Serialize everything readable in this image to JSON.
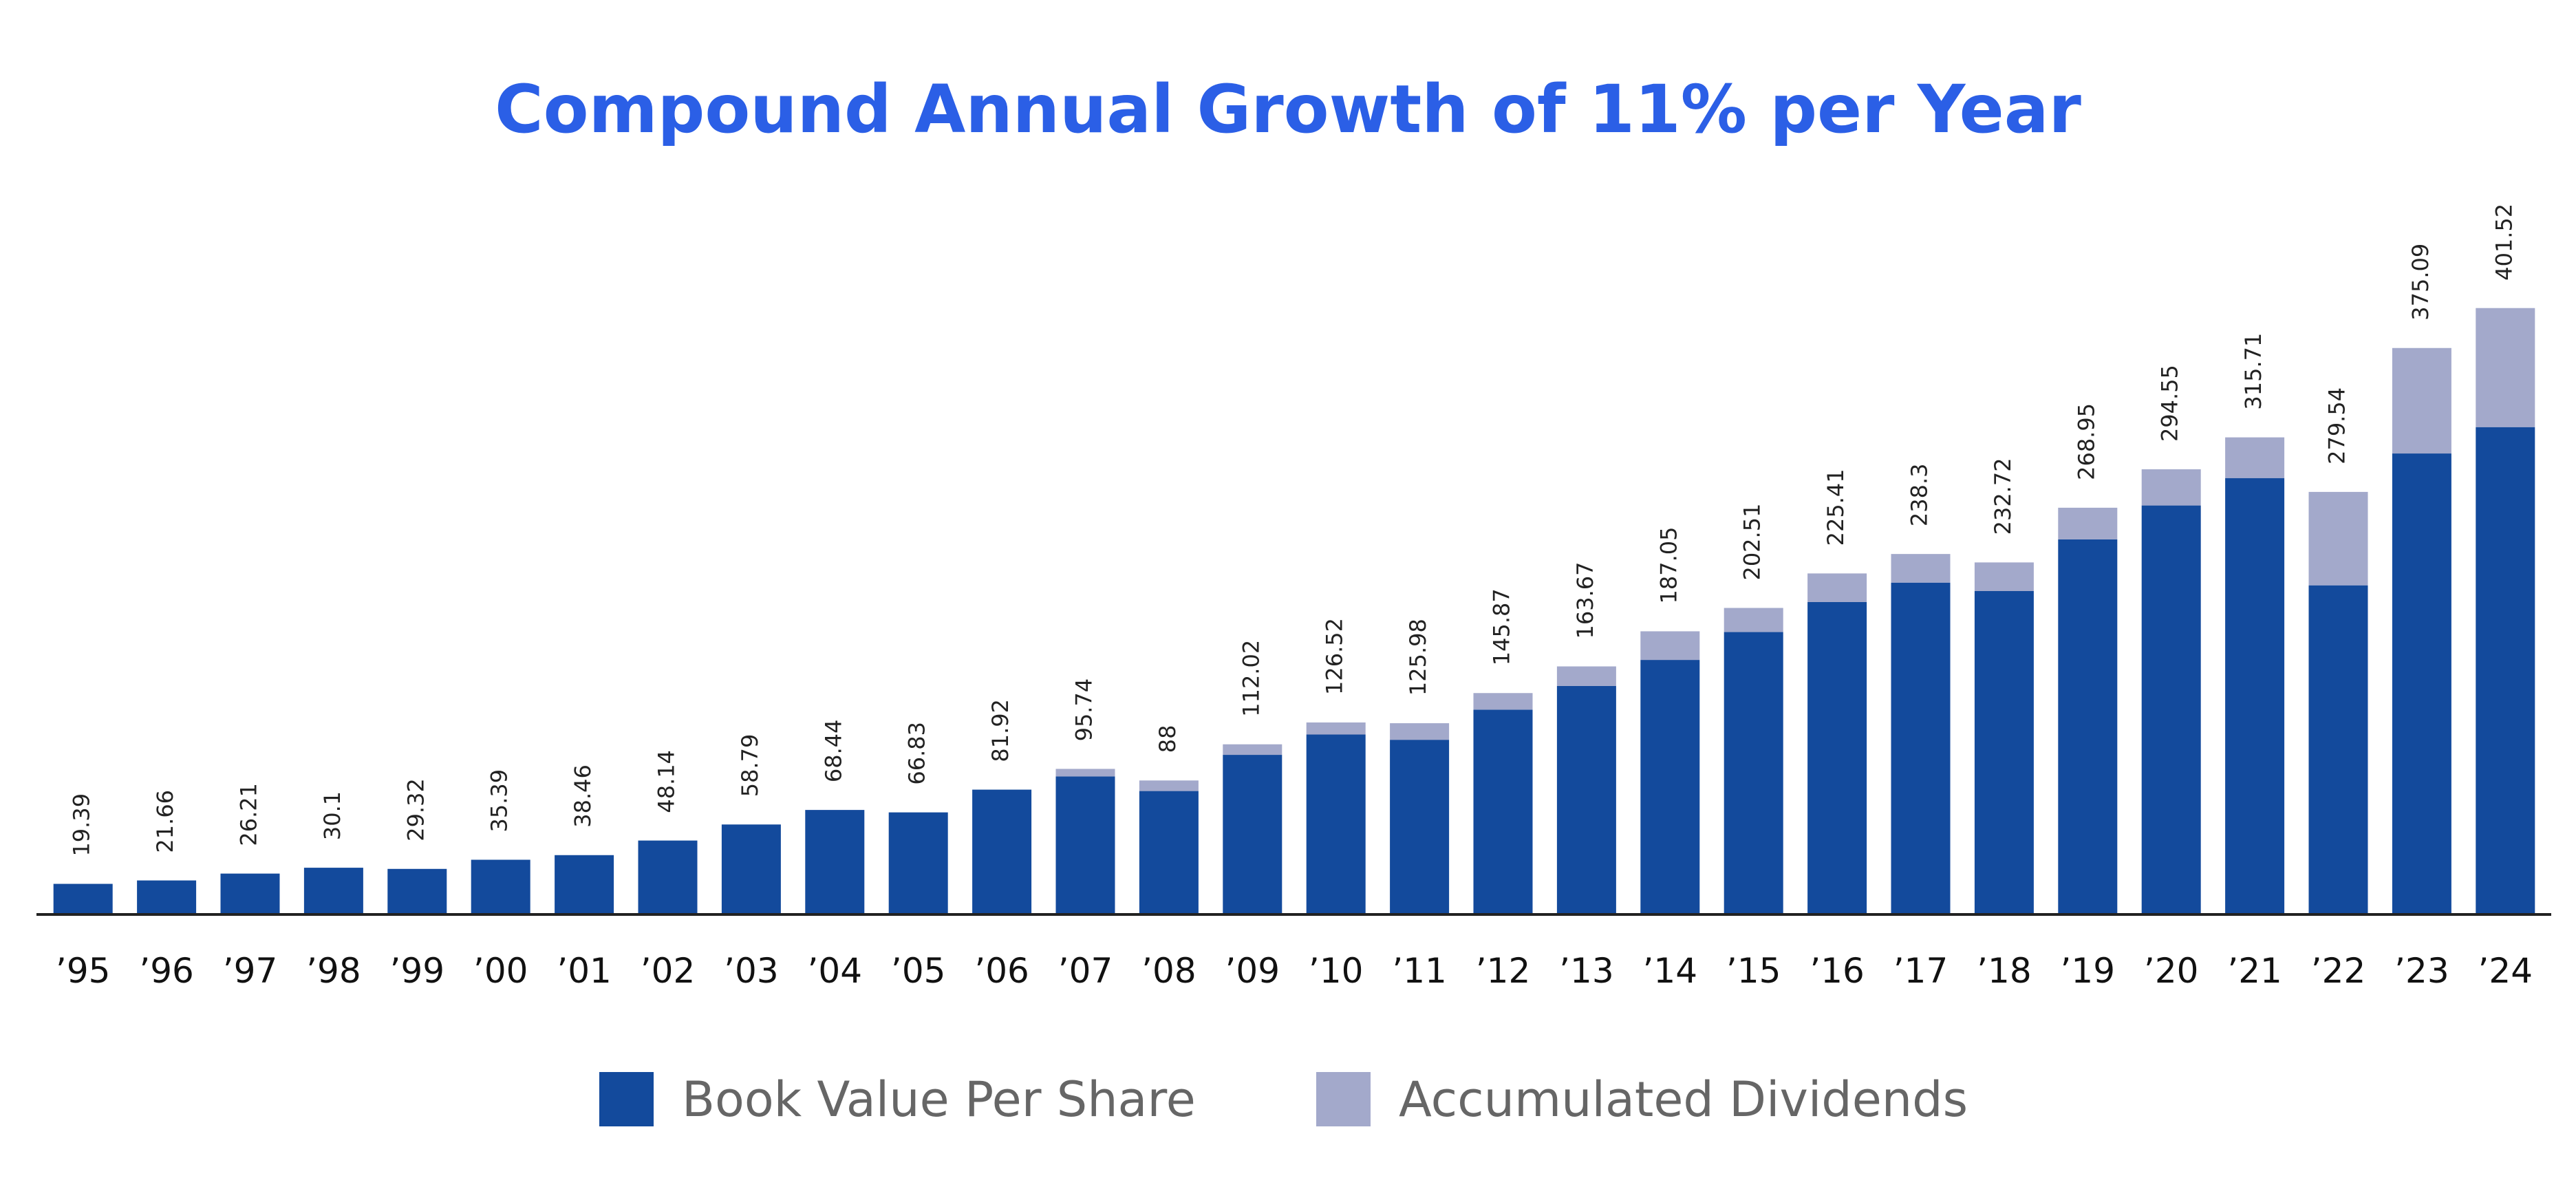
{
  "chart_data": {
    "type": "stacked_bar",
    "title": "Compound Annual Growth of 11% per Year",
    "categories": [
      "’95",
      "’96",
      "’97",
      "’98",
      "’99",
      "’00",
      "’01",
      "’02",
      "’03",
      "’04",
      "’05",
      "’06",
      "’07",
      "’08",
      "’09",
      "’10",
      "’11",
      "’12",
      "’13",
      "’14",
      "’15",
      "’16",
      "’17",
      "’18",
      "’19",
      "’20",
      "’21",
      "’22",
      "’23",
      "’24"
    ],
    "series": [
      {
        "name": "Book Value Per Share",
        "color": "#134a9c",
        "values": [
          19.39,
          21.66,
          26.21,
          30.1,
          29.32,
          35.39,
          38.46,
          48.14,
          58.79,
          68.44,
          66.83,
          81.92,
          90.7,
          81,
          105,
          118.5,
          115,
          135,
          150.7,
          168,
          186.5,
          206.4,
          219.3,
          213.7,
          248,
          270.5,
          288.7,
          217.5,
          305,
          322.5
        ]
      },
      {
        "name": "Accumulated Dividends",
        "color": "#a3a9cb",
        "values": [
          0,
          0,
          0,
          0,
          0,
          0,
          0,
          0,
          0,
          0,
          0,
          0,
          5,
          7,
          7,
          8,
          11,
          11,
          13,
          19,
          16,
          19,
          19,
          19,
          21,
          24,
          27,
          62,
          70,
          79
        ]
      }
    ],
    "totals": [
      19.39,
      21.66,
      26.21,
      30.1,
      29.32,
      35.39,
      38.46,
      48.14,
      58.79,
      68.44,
      66.83,
      81.92,
      95.74,
      88,
      112.02,
      126.52,
      125.98,
      145.87,
      163.67,
      187.05,
      202.51,
      225.41,
      238.3,
      232.72,
      268.95,
      294.55,
      315.71,
      279.54,
      375.09,
      401.52
    ]
  }
}
